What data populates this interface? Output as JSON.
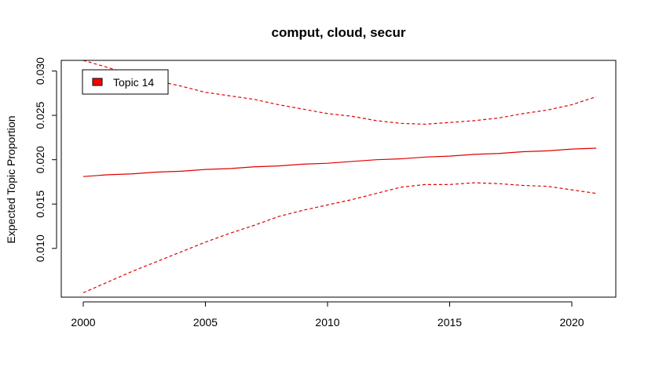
{
  "chart_data": {
    "type": "line",
    "title": "comput, cloud, secur",
    "xlabel": "",
    "ylabel": "Expected Topic Proportion",
    "xlim": [
      1999.1,
      2021.8
    ],
    "ylim": [
      0.0045,
      0.0312
    ],
    "x_ticks": [
      2000,
      2005,
      2010,
      2015,
      2020
    ],
    "x_tick_labels": [
      "2000",
      "2005",
      "2010",
      "2015",
      "2020"
    ],
    "y_ticks": [
      0.01,
      0.015,
      0.02,
      0.025,
      0.03
    ],
    "y_tick_labels": [
      "0.010",
      "0.015",
      "0.020",
      "0.025",
      "0.030"
    ],
    "grid": false,
    "legend": {
      "position": "top-left",
      "entries": [
        "Topic 14"
      ]
    },
    "colors": {
      "series": "#e00000",
      "legend_swatch": "#ff0000",
      "axis": "#000000"
    },
    "x": [
      2000,
      2001,
      2002,
      2003,
      2004,
      2005,
      2006,
      2007,
      2008,
      2009,
      2010,
      2011,
      2012,
      2013,
      2014,
      2015,
      2016,
      2017,
      2018,
      2019,
      2020,
      2021
    ],
    "series": [
      {
        "name": "Topic 14",
        "role": "estimate",
        "style": "solid",
        "values": [
          0.0181,
          0.0183,
          0.0184,
          0.0186,
          0.0187,
          0.0189,
          0.019,
          0.0192,
          0.0193,
          0.0195,
          0.0196,
          0.0198,
          0.02,
          0.0201,
          0.0203,
          0.0204,
          0.0206,
          0.0207,
          0.0209,
          0.021,
          0.0212,
          0.0213
        ]
      },
      {
        "role": "upper",
        "style": "dashed",
        "values": [
          0.0312,
          0.0304,
          0.0296,
          0.0289,
          0.0283,
          0.0276,
          0.0272,
          0.0268,
          0.0262,
          0.0257,
          0.0252,
          0.0249,
          0.0244,
          0.0241,
          0.024,
          0.0242,
          0.0244,
          0.0247,
          0.0252,
          0.0256,
          0.0262,
          0.0271
        ]
      },
      {
        "role": "lower",
        "style": "dashed",
        "values": [
          0.005,
          0.0062,
          0.0074,
          0.0085,
          0.0096,
          0.0107,
          0.0117,
          0.0126,
          0.0136,
          0.0143,
          0.0149,
          0.0155,
          0.0162,
          0.0169,
          0.0172,
          0.0172,
          0.0174,
          0.0173,
          0.0171,
          0.017,
          0.0166,
          0.0162
        ]
      }
    ]
  }
}
